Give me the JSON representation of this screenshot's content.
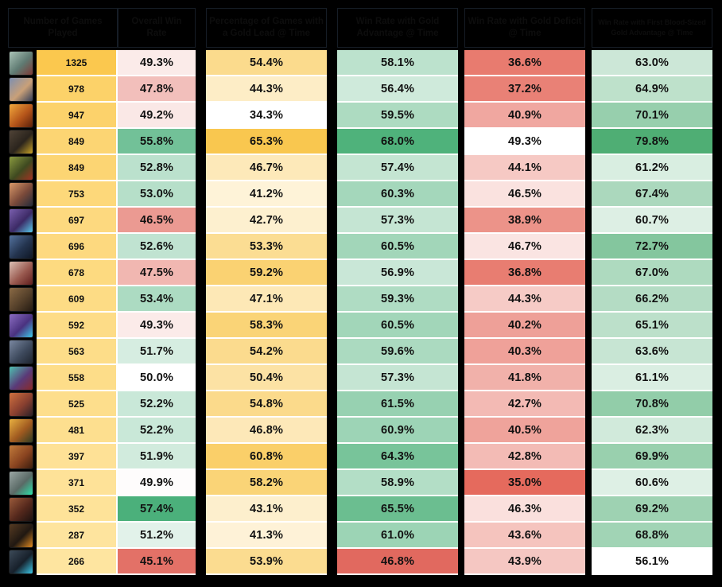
{
  "layout_colors": {
    "page_background": "#000000",
    "header_background": "#9DC3E6",
    "header_border": "#161D26",
    "grid_line": "#FFFFFF",
    "text": "#111111"
  },
  "chart_data": {
    "type": "table",
    "columns": [
      "Number of Games Played",
      "Overall Win Rate",
      "Percentage of Games with a Gold Lead @ Time",
      "Win Rate with Gold Advantage @ Time",
      "Win Rate with Gold Deficit @ Time",
      "Win Rate with First Blood-Sized Gold Advantage @ Time"
    ],
    "value_format": [
      "integer",
      "percent1",
      "percent1",
      "percent1",
      "percent1",
      "percent1"
    ],
    "rows": [
      [
        1325,
        49.3,
        54.4,
        58.1,
        36.6,
        63.0
      ],
      [
        978,
        47.8,
        44.3,
        56.4,
        37.2,
        64.9
      ],
      [
        947,
        49.2,
        34.3,
        59.5,
        40.9,
        70.1
      ],
      [
        849,
        55.8,
        65.3,
        68.0,
        49.3,
        79.8
      ],
      [
        849,
        52.8,
        46.7,
        57.4,
        44.1,
        61.2
      ],
      [
        753,
        53.0,
        41.2,
        60.3,
        46.5,
        67.4
      ],
      [
        697,
        46.5,
        42.7,
        57.3,
        38.9,
        60.7
      ],
      [
        696,
        52.6,
        53.3,
        60.5,
        46.7,
        72.7
      ],
      [
        678,
        47.5,
        59.2,
        56.9,
        36.8,
        67.0
      ],
      [
        609,
        53.4,
        47.1,
        59.3,
        44.3,
        66.2
      ],
      [
        592,
        49.3,
        58.3,
        60.5,
        40.2,
        65.1
      ],
      [
        563,
        51.7,
        54.2,
        59.6,
        40.3,
        63.6
      ],
      [
        558,
        50.0,
        50.4,
        57.3,
        41.8,
        61.1
      ],
      [
        525,
        52.2,
        54.8,
        61.5,
        42.7,
        70.8
      ],
      [
        481,
        52.2,
        46.8,
        60.9,
        40.5,
        62.3
      ],
      [
        397,
        51.9,
        60.8,
        64.3,
        42.8,
        69.9
      ],
      [
        371,
        49.9,
        58.2,
        58.9,
        35.0,
        60.6
      ],
      [
        352,
        57.4,
        43.1,
        65.5,
        46.3,
        69.2
      ],
      [
        287,
        51.2,
        41.3,
        61.0,
        43.6,
        68.8
      ],
      [
        266,
        45.1,
        53.9,
        46.8,
        43.9,
        56.1
      ]
    ]
  },
  "formatting": {
    "column_scales": [
      {
        "type": "linear",
        "min": 266,
        "max": 1325,
        "min_color": "#FEE5A0",
        "max_color": "#FBC84E"
      },
      {
        "type": "diverging",
        "min": 45.1,
        "mid": 50.0,
        "max": 57.4,
        "min_color": "#E37167",
        "mid_color": "#FFFFFF",
        "max_color": "#4BB07B"
      },
      {
        "type": "linear",
        "min": 34.3,
        "max": 65.3,
        "min_color": "#FFFFFF",
        "max_color": "#F9C74F"
      },
      {
        "type": "diverging",
        "min": 46.8,
        "mid": 52.0,
        "max": 68.0,
        "min_color": "#E1695F",
        "mid_color": "#FFFFFF",
        "max_color": "#4FB27B"
      },
      {
        "type": "linear",
        "min": 35.0,
        "max": 49.3,
        "min_color": "#E56A5D",
        "max_color": "#FFFFFF"
      },
      {
        "type": "linear",
        "min": 56.1,
        "max": 79.8,
        "min_color": "#FFFFFF",
        "max_color": "#4FAE74"
      }
    ]
  },
  "champion_icons": [
    {
      "name": "champion-portrait-1",
      "colors": [
        "#a9c3b6",
        "#5f7a72",
        "#7e3a36"
      ]
    },
    {
      "name": "champion-portrait-2",
      "colors": [
        "#7d8fb0",
        "#c9a078",
        "#333d58"
      ]
    },
    {
      "name": "champion-portrait-3",
      "colors": [
        "#f2a83c",
        "#b5551a",
        "#59200a"
      ]
    },
    {
      "name": "champion-portrait-4",
      "colors": [
        "#4f4336",
        "#2b241d",
        "#c9a227"
      ]
    },
    {
      "name": "champion-portrait-5",
      "colors": [
        "#8a9a3f",
        "#3f4a20",
        "#a03322"
      ]
    },
    {
      "name": "champion-portrait-6",
      "colors": [
        "#d99868",
        "#7a4a3a",
        "#232b3a"
      ]
    },
    {
      "name": "champion-portrait-7",
      "colors": [
        "#7a5fae",
        "#3c2a66",
        "#57c7e8"
      ]
    },
    {
      "name": "champion-portrait-8",
      "colors": [
        "#53729e",
        "#24344f",
        "#0e1624"
      ]
    },
    {
      "name": "champion-portrait-9",
      "colors": [
        "#dcc0b4",
        "#9a5a50",
        "#5f1d1d"
      ]
    },
    {
      "name": "champion-portrait-10",
      "colors": [
        "#8a6a45",
        "#55402a",
        "#241a12"
      ]
    },
    {
      "name": "champion-portrait-11",
      "colors": [
        "#8a6cc0",
        "#4a3280",
        "#3dc8e8"
      ]
    },
    {
      "name": "champion-portrait-12",
      "colors": [
        "#7a88a0",
        "#3e4a5e",
        "#1e242e"
      ]
    },
    {
      "name": "champion-portrait-13",
      "colors": [
        "#4ec0b0",
        "#5a3a78",
        "#8a2a28"
      ]
    },
    {
      "name": "champion-portrait-14",
      "colors": [
        "#d0703f",
        "#8a4030",
        "#2a2028"
      ]
    },
    {
      "name": "champion-portrait-15",
      "colors": [
        "#e8b040",
        "#a05a20",
        "#2f3c22"
      ]
    },
    {
      "name": "champion-portrait-16",
      "colors": [
        "#c07a3a",
        "#8a4420",
        "#3a1d0e"
      ]
    },
    {
      "name": "champion-portrait-17",
      "colors": [
        "#9aa6a4",
        "#5a6a66",
        "#2de0a8"
      ]
    },
    {
      "name": "champion-portrait-18",
      "colors": [
        "#9a5a3a",
        "#55281c",
        "#1c1210"
      ]
    },
    {
      "name": "champion-portrait-19",
      "colors": [
        "#553a22",
        "#201812",
        "#e08a20"
      ]
    },
    {
      "name": "champion-portrait-20",
      "colors": [
        "#3c4a58",
        "#17202b",
        "#3cc8e8"
      ]
    }
  ]
}
